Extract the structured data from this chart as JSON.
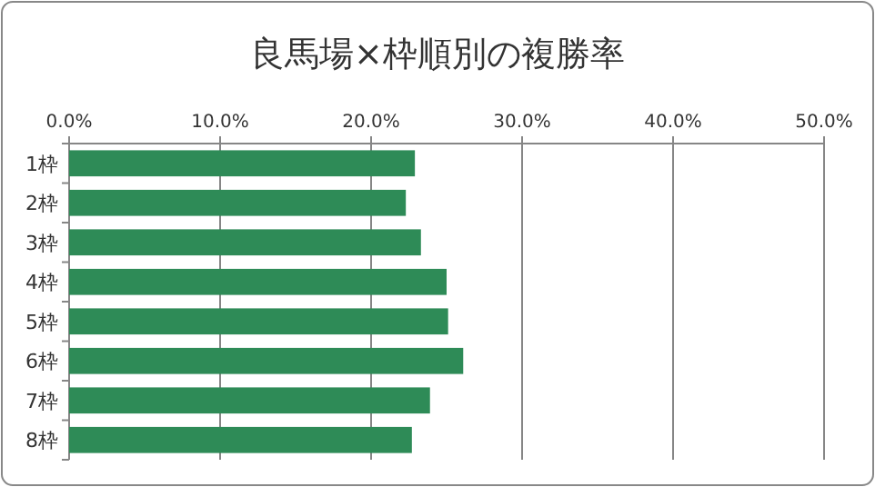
{
  "chart_data": {
    "type": "bar",
    "orientation": "horizontal",
    "title": "良馬場×枠順別の複勝率",
    "categories": [
      "1枠",
      "2枠",
      "3枠",
      "4枠",
      "5枠",
      "6枠",
      "7枠",
      "8枠"
    ],
    "values": [
      22.9,
      22.3,
      23.3,
      25.0,
      25.1,
      26.1,
      23.9,
      22.7
    ],
    "color": "#2e8b57",
    "xlim": [
      0,
      50
    ],
    "xticks": [
      {
        "value": 0,
        "label": "0.0%"
      },
      {
        "value": 10,
        "label": "10.0%"
      },
      {
        "value": 20,
        "label": "20.0%"
      },
      {
        "value": 30,
        "label": "30.0%"
      },
      {
        "value": 40,
        "label": "40.0%"
      },
      {
        "value": 50,
        "label": "50.0%"
      }
    ],
    "grid": "x"
  }
}
